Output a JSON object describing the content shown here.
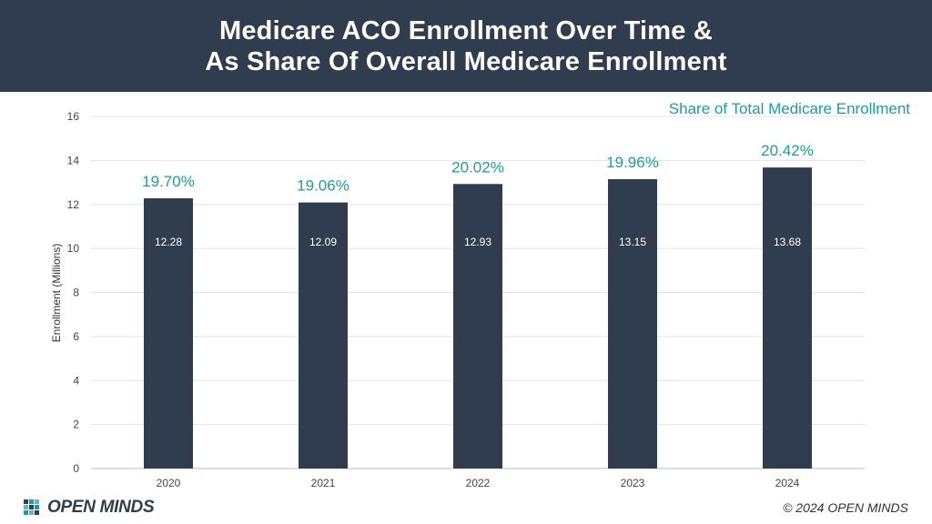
{
  "header": {
    "title_line1": "Medicare ACO Enrollment Over Time &",
    "title_line2": "As Share Of Overall Medicare Enrollment"
  },
  "share_label": "Share of Total Medicare Enrollment",
  "footer": {
    "logo_text": "OPEN MINDS",
    "copyright": "© 2024 OPEN MINDS"
  },
  "colors": {
    "header_bg": "#2f3d4e",
    "bar": "#2f3d4e",
    "share_text": "#1f9e96"
  },
  "chart_data": {
    "type": "bar",
    "categories": [
      "2020",
      "2021",
      "2022",
      "2023",
      "2024"
    ],
    "values": [
      12.28,
      12.09,
      12.93,
      13.15,
      13.68
    ],
    "value_labels": [
      "12.28",
      "12.09",
      "12.93",
      "13.15",
      "13.68"
    ],
    "share_labels": [
      "19.70%",
      "19.06%",
      "20.02%",
      "19.96%",
      "20.42%"
    ],
    "ylabel": "Enrollment  (Millions)",
    "ylim": [
      0,
      16
    ],
    "yticks": [
      "0",
      "2",
      "4",
      "6",
      "8",
      "10",
      "12",
      "14",
      "16"
    ],
    "grid": true
  }
}
